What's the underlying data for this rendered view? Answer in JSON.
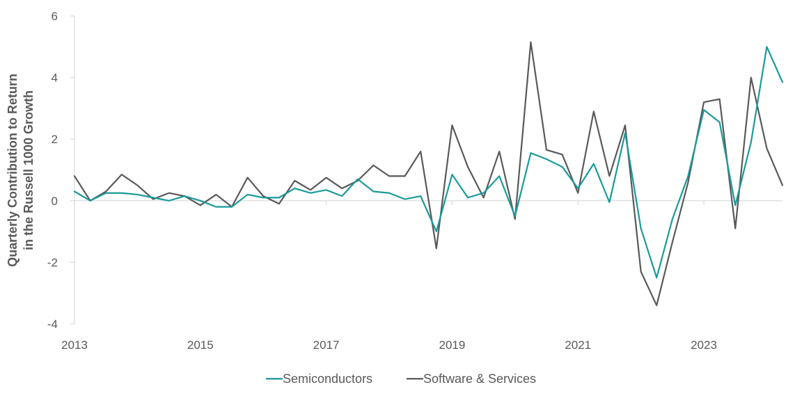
{
  "chart_data": {
    "type": "line",
    "title": "",
    "xlabel": "",
    "ylabel_lines": [
      "Quarterly Contribution to Return",
      "in the Russell 1000 Growth"
    ],
    "ylim": [
      -4,
      6
    ],
    "y_ticks": [
      -4,
      -2,
      0,
      2,
      4,
      6
    ],
    "y_tick_labels": [
      "-4",
      "-2",
      "0",
      "2",
      "4",
      "6"
    ],
    "x_range": [
      2013.0,
      2024.25
    ],
    "x_ticks": [
      2013,
      2015,
      2017,
      2019,
      2021,
      2023
    ],
    "x_tick_labels": [
      "2013",
      "2015",
      "2017",
      "2019",
      "2021",
      "2023"
    ],
    "grid": false,
    "legend_position": "bottom-center",
    "series": [
      {
        "name": "Semiconductors",
        "color": "#1a9a9a",
        "x": [
          2013.0,
          2013.25,
          2013.5,
          2013.75,
          2014.0,
          2014.25,
          2014.5,
          2014.75,
          2015.0,
          2015.25,
          2015.5,
          2015.75,
          2016.0,
          2016.25,
          2016.5,
          2016.75,
          2017.0,
          2017.25,
          2017.5,
          2017.75,
          2018.0,
          2018.25,
          2018.5,
          2018.75,
          2019.0,
          2019.25,
          2019.5,
          2019.75,
          2020.0,
          2020.25,
          2020.5,
          2020.75,
          2021.0,
          2021.25,
          2021.5,
          2021.75,
          2022.0,
          2022.25,
          2022.5,
          2022.75,
          2023.0,
          2023.25,
          2023.5,
          2023.75,
          2024.0,
          2024.25
        ],
        "values": [
          0.3,
          0.0,
          0.25,
          0.25,
          0.2,
          0.1,
          0.0,
          0.15,
          0.0,
          -0.2,
          -0.2,
          0.2,
          0.1,
          0.1,
          0.4,
          0.25,
          0.35,
          0.15,
          0.7,
          0.3,
          0.25,
          0.05,
          0.15,
          -1.0,
          0.85,
          0.1,
          0.25,
          0.8,
          -0.5,
          1.55,
          1.35,
          1.1,
          0.4,
          1.2,
          -0.05,
          2.2,
          -0.9,
          -2.5,
          -0.6,
          0.8,
          2.95,
          2.55,
          -0.15,
          1.9,
          5.0,
          3.85
        ]
      },
      {
        "name": "Software & Services",
        "color": "#595959",
        "x": [
          2013.0,
          2013.25,
          2013.5,
          2013.75,
          2014.0,
          2014.25,
          2014.5,
          2014.75,
          2015.0,
          2015.25,
          2015.5,
          2015.75,
          2016.0,
          2016.25,
          2016.5,
          2016.75,
          2017.0,
          2017.25,
          2017.5,
          2017.75,
          2018.0,
          2018.25,
          2018.5,
          2018.75,
          2019.0,
          2019.25,
          2019.5,
          2019.75,
          2020.0,
          2020.25,
          2020.5,
          2020.75,
          2021.0,
          2021.25,
          2021.5,
          2021.75,
          2022.0,
          2022.25,
          2022.5,
          2022.75,
          2023.0,
          2023.25,
          2023.5,
          2023.75,
          2024.0,
          2024.25
        ],
        "values": [
          0.8,
          0.0,
          0.3,
          0.85,
          0.5,
          0.05,
          0.25,
          0.15,
          -0.15,
          0.2,
          -0.2,
          0.75,
          0.15,
          -0.1,
          0.65,
          0.35,
          0.75,
          0.4,
          0.65,
          1.15,
          0.8,
          0.8,
          1.6,
          -1.55,
          2.45,
          1.1,
          0.1,
          1.6,
          -0.6,
          5.15,
          1.65,
          1.5,
          0.25,
          2.9,
          0.8,
          2.45,
          -2.3,
          -3.4,
          -1.35,
          0.6,
          3.2,
          3.3,
          -0.9,
          4.0,
          1.7,
          0.5
        ]
      }
    ]
  }
}
